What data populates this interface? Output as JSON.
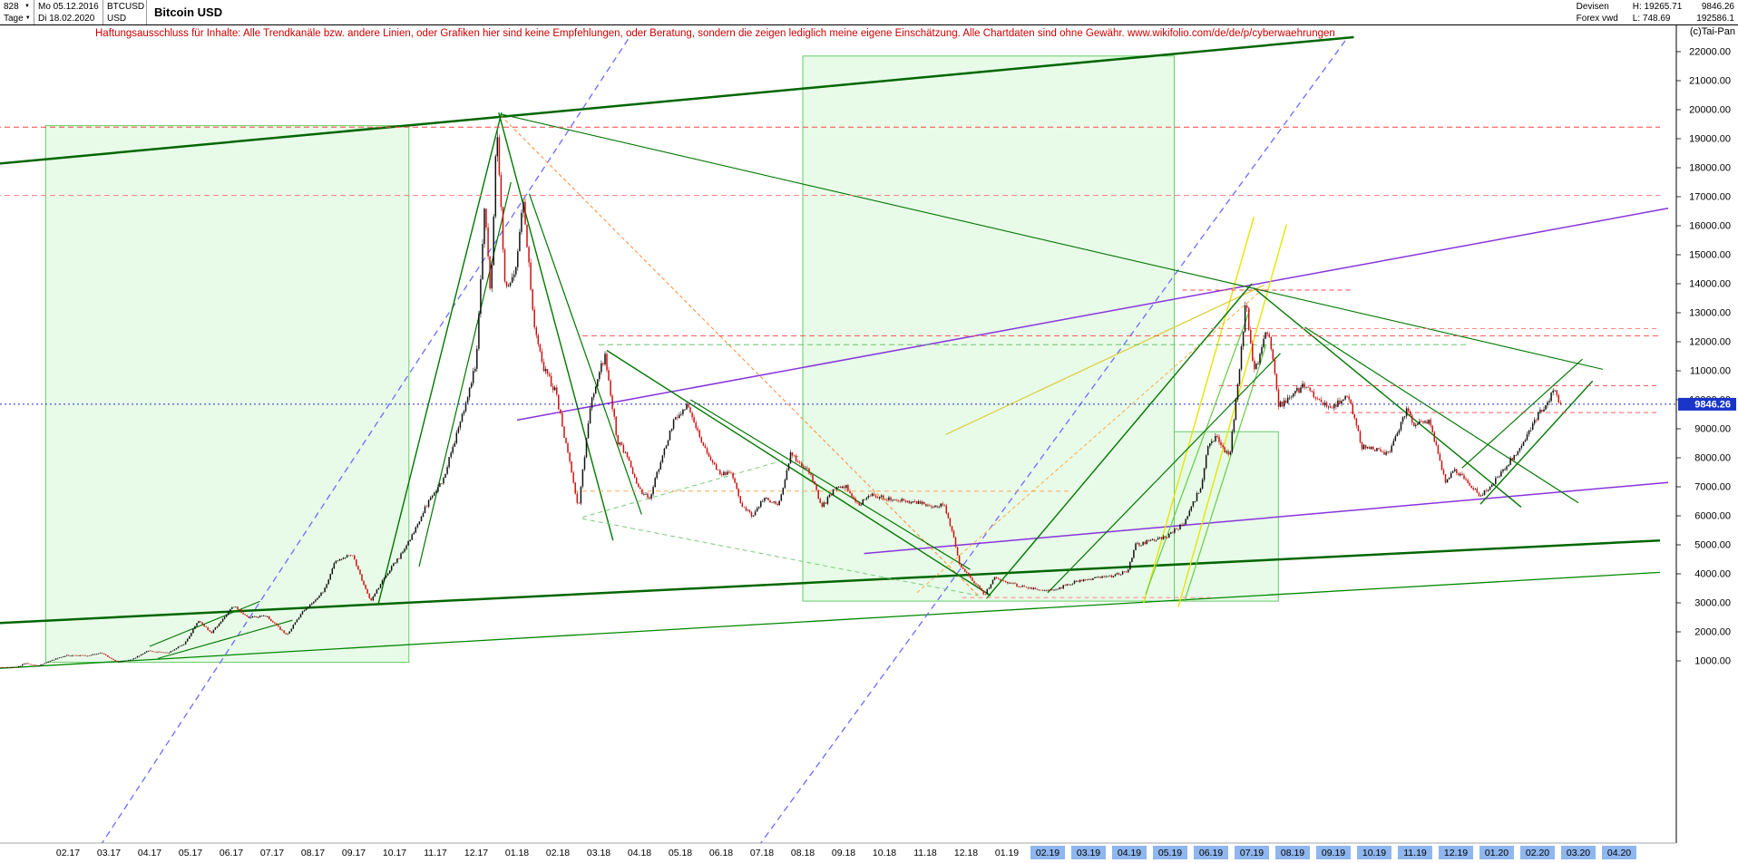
{
  "header": {
    "id_value": "828",
    "period_label": "Tage",
    "date_start": "Mo 05.12.2016",
    "date_end": "Di 18.02.2020",
    "symbol": "BTCUSD",
    "currency": "USD",
    "title": "Bitcoin USD",
    "category": "Devisen",
    "source": "Forex vwd",
    "high_label": "H: 19265.71",
    "low_label": "L: 748.69",
    "last_price": "9846.26",
    "secondary_value": "192586.1"
  },
  "disclaimer": "Haftungsausschluss für Inhalte: Alle Trendkanäle bzw. andere Linien, oder Grafiken hier sind keine Empfehlungen, oder Beratung, sondern die zeigen lediglich meine eigene Einschätzung. Alle Chartdaten sind ohne Gewähr.  www.wikifolio.com/de/de/p/cyberwaehrungen",
  "copyright": "(c)Tai-Pan",
  "price_badge": "9846.26",
  "chart_data": {
    "type": "candlestick",
    "title": "Bitcoin USD",
    "instrument": "BTCUSD",
    "timeframe": "Tage",
    "period": "Mo 05.12.2016 - Di 18.02.2020",
    "high": 19265.71,
    "low": 748.69,
    "current_price": 9846.26,
    "up_color": "#111111",
    "down_color": "#cc1111",
    "current_price_color": "#2233cc",
    "badge_color": "#1a35c8",
    "y_axis": {
      "min": 1000,
      "max": 22000,
      "step": 1000,
      "decimals": 2
    },
    "x_axis": {
      "labels": [
        "02.17",
        "03.17",
        "04.17",
        "05.17",
        "06.17",
        "07.17",
        "08.17",
        "09.17",
        "10.17",
        "11.17",
        "12.17",
        "01.18",
        "02.18",
        "03.18",
        "04.18",
        "05.18",
        "06.18",
        "07.18",
        "08.18",
        "09.18",
        "10.18",
        "11.18",
        "12.18",
        "01.19",
        "02.19",
        "03.19",
        "04.19",
        "05.19",
        "06.19",
        "07.19",
        "08.19",
        "09.19",
        "10.19",
        "11.19",
        "12.19",
        "01.20",
        "02.20",
        "03.20",
        "04.20"
      ],
      "first_label_month_index": 2,
      "highlight_start_index": 24,
      "highlight_color": "#8fb6ee"
    },
    "candle_start": 0.2,
    "candle_end": 38.6,
    "path_anchors": [
      [
        0.2,
        770
      ],
      [
        0.8,
        785
      ],
      [
        1.0,
        920
      ],
      [
        1.3,
        830
      ],
      [
        1.7,
        1050
      ],
      [
        2.0,
        1190
      ],
      [
        2.55,
        1180
      ],
      [
        2.85,
        1280
      ],
      [
        3.25,
        960
      ],
      [
        3.6,
        1040
      ],
      [
        4.0,
        1350
      ],
      [
        4.5,
        1280
      ],
      [
        4.9,
        1600
      ],
      [
        5.25,
        2400
      ],
      [
        5.55,
        1950
      ],
      [
        6.1,
        2900
      ],
      [
        6.45,
        2500
      ],
      [
        6.9,
        2550
      ],
      [
        7.4,
        1890
      ],
      [
        7.8,
        2700
      ],
      [
        8.3,
        3400
      ],
      [
        8.6,
        4450
      ],
      [
        9.0,
        4700
      ],
      [
        9.45,
        3050
      ],
      [
        9.8,
        3900
      ],
      [
        10.3,
        4850
      ],
      [
        10.8,
        6300
      ],
      [
        11.25,
        7300
      ],
      [
        11.8,
        9950
      ],
      [
        12.05,
        11300
      ],
      [
        12.25,
        16850
      ],
      [
        12.4,
        13400
      ],
      [
        12.55,
        19650
      ],
      [
        12.75,
        13900
      ],
      [
        13.0,
        14400
      ],
      [
        13.2,
        16950
      ],
      [
        13.45,
        12800
      ],
      [
        13.7,
        11100
      ],
      [
        14.0,
        10250
      ],
      [
        14.25,
        8400
      ],
      [
        14.55,
        6250
      ],
      [
        14.85,
        9900
      ],
      [
        15.05,
        10900
      ],
      [
        15.2,
        11500
      ],
      [
        15.5,
        8600
      ],
      [
        15.8,
        7900
      ],
      [
        16.0,
        6930
      ],
      [
        16.3,
        6650
      ],
      [
        16.6,
        8050
      ],
      [
        16.9,
        9300
      ],
      [
        17.2,
        9800
      ],
      [
        17.6,
        8450
      ],
      [
        18.0,
        7490
      ],
      [
        18.3,
        7450
      ],
      [
        18.55,
        6350
      ],
      [
        18.8,
        5980
      ],
      [
        19.1,
        6650
      ],
      [
        19.45,
        6350
      ],
      [
        19.75,
        8150
      ],
      [
        20.0,
        7730
      ],
      [
        20.25,
        7450
      ],
      [
        20.5,
        6250
      ],
      [
        20.8,
        6900
      ],
      [
        21.1,
        7050
      ],
      [
        21.4,
        6350
      ],
      [
        21.7,
        6700
      ],
      [
        22.0,
        6625
      ],
      [
        22.4,
        6580
      ],
      [
        22.8,
        6450
      ],
      [
        23.2,
        6350
      ],
      [
        23.5,
        6400
      ],
      [
        23.7,
        5500
      ],
      [
        23.9,
        4250
      ],
      [
        24.1,
        3950
      ],
      [
        24.5,
        3280
      ],
      [
        24.75,
        3900
      ],
      [
        25.0,
        3740
      ],
      [
        25.4,
        3550
      ],
      [
        25.8,
        3450
      ],
      [
        26.2,
        3420
      ],
      [
        26.6,
        3680
      ],
      [
        27.0,
        3820
      ],
      [
        27.5,
        3880
      ],
      [
        28.0,
        4100
      ],
      [
        28.2,
        5000
      ],
      [
        28.6,
        5150
      ],
      [
        29.0,
        5320
      ],
      [
        29.4,
        5750
      ],
      [
        29.8,
        7050
      ],
      [
        30.0,
        8560
      ],
      [
        30.2,
        8700
      ],
      [
        30.5,
        7980
      ],
      [
        30.75,
        11200
      ],
      [
        30.9,
        13400
      ],
      [
        31.1,
        10900
      ],
      [
        31.45,
        12500
      ],
      [
        31.7,
        9800
      ],
      [
        32.0,
        10080
      ],
      [
        32.3,
        10500
      ],
      [
        32.6,
        10150
      ],
      [
        33.0,
        9630
      ],
      [
        33.4,
        10250
      ],
      [
        33.75,
        8350
      ],
      [
        34.0,
        8310
      ],
      [
        34.4,
        8150
      ],
      [
        34.85,
        9650
      ],
      [
        35.0,
        9150
      ],
      [
        35.4,
        9250
      ],
      [
        35.8,
        7100
      ],
      [
        36.0,
        7570
      ],
      [
        36.3,
        7250
      ],
      [
        36.65,
        6650
      ],
      [
        37.0,
        7190
      ],
      [
        37.3,
        7750
      ],
      [
        37.6,
        8350
      ],
      [
        38.0,
        9350
      ],
      [
        38.25,
        9800
      ],
      [
        38.45,
        10300
      ],
      [
        38.6,
        9846
      ]
    ],
    "levels": [
      {
        "p": 19400,
        "m1": 0,
        "m2": 41,
        "color": "#ff4444",
        "dash": "6 4",
        "w": 1
      },
      {
        "p": 17050,
        "m1": 0,
        "m2": 41,
        "color": "#ff7777",
        "dash": "6 4",
        "w": 0.9
      },
      {
        "p": 12200,
        "m1": 14.6,
        "m2": 41,
        "color": "#ff4444",
        "dash": "6 4",
        "w": 0.9
      },
      {
        "p": 11900,
        "m1": 15.0,
        "m2": 36.3,
        "color": "#55bb55",
        "dash": "6 4",
        "w": 0.9
      },
      {
        "p": 13780,
        "m1": 29.3,
        "m2": 33.5,
        "color": "#ff4444",
        "dash": "5 4",
        "w": 0.9
      },
      {
        "p": 12450,
        "m1": 29.8,
        "m2": 41,
        "color": "#ff7777",
        "dash": "5 4",
        "w": 0.9
      },
      {
        "p": 10480,
        "m1": 30.2,
        "m2": 41,
        "color": "#ff4444",
        "dash": "5 4",
        "w": 0.9
      },
      {
        "p": 9560,
        "m1": 32.8,
        "m2": 41,
        "color": "#ff4444",
        "dash": "5 4",
        "w": 0.9
      },
      {
        "p": 6850,
        "m1": 14.4,
        "m2": 26.6,
        "color": "#ff9944",
        "dash": "5 4",
        "w": 0.9
      },
      {
        "p": 3180,
        "m1": 23.9,
        "m2": 30.0,
        "color": "#ff7777",
        "dash": "5 4",
        "w": 0.9
      }
    ],
    "trend_lines": [
      {
        "m1": 0,
        "p1": 18100,
        "m2": 33.5,
        "p2": 22500,
        "color": "#006600",
        "w": 2.5
      },
      {
        "m1": 0,
        "p1": 2280,
        "m2": 41,
        "p2": 5150,
        "color": "#006600",
        "w": 2.5
      },
      {
        "m1": 0.3,
        "p1": 740,
        "m2": 41,
        "p2": 4050,
        "color": "#008800",
        "w": 1.3
      },
      {
        "m1": 2.5,
        "p1": -6000,
        "m2": 15.8,
        "p2": 22600,
        "color": "#6b6bff",
        "w": 1.3,
        "dash": "7 5"
      },
      {
        "m1": 18.6,
        "p1": -6000,
        "m2": 33.3,
        "p2": 22400,
        "color": "#6b6bff",
        "w": 1.3,
        "dash": "7 5"
      },
      {
        "m1": 13,
        "p1": 9300,
        "m2": 41.2,
        "p2": 16600,
        "color": "#8833dd",
        "w": 1.5
      },
      {
        "m1": 21.5,
        "p1": 4700,
        "m2": 41.2,
        "p2": 7150,
        "color": "#8833dd",
        "w": 1.5
      },
      {
        "m1": 28.35,
        "p1": 3000,
        "m2": 31.05,
        "p2": 16300,
        "color": "#e6e600",
        "w": 1.4
      },
      {
        "m1": 29.2,
        "p1": 2850,
        "m2": 31.85,
        "p2": 16050,
        "color": "#e6e600",
        "w": 1.4
      },
      {
        "m1": 23.5,
        "p1": 8800,
        "m2": 31.3,
        "p2": 13950,
        "color": "#ddcc33",
        "w": 1.2
      },
      {
        "m1": 12.6,
        "p1": 19800,
        "m2": 24.3,
        "p2": 3250,
        "color": "#ff8833",
        "w": 1,
        "dash": "4 3"
      },
      {
        "m1": 22.8,
        "p1": 3350,
        "m2": 31.3,
        "p2": 13850,
        "color": "#ffaa44",
        "w": 1,
        "dash": "4 3"
      },
      {
        "m1": 28.4,
        "p1": 3300,
        "m2": 30.95,
        "p2": 13100,
        "color": "#66cc44",
        "w": 1.2
      },
      {
        "m1": 29.35,
        "p1": 3050,
        "m2": 31.35,
        "p2": 11900,
        "color": "#66cc44",
        "w": 1.2
      },
      {
        "m1": 12.55,
        "p1": 19900,
        "m2": 15.35,
        "p2": 5150,
        "color": "#007700",
        "w": 1.4
      },
      {
        "m1": 13.3,
        "p1": 17100,
        "m2": 16.05,
        "p2": 6050,
        "color": "#007700",
        "w": 1.2
      },
      {
        "m1": 9.6,
        "p1": 2950,
        "m2": 12.62,
        "p2": 19900,
        "color": "#007700",
        "w": 1.4
      },
      {
        "m1": 10.6,
        "p1": 4250,
        "m2": 12.85,
        "p2": 17500,
        "color": "#007700",
        "w": 1.2
      },
      {
        "m1": 15.2,
        "p1": 11700,
        "m2": 24.6,
        "p2": 3250,
        "color": "#007700",
        "w": 1.4
      },
      {
        "m1": 17.25,
        "p1": 10000,
        "m2": 24.1,
        "p2": 4150,
        "color": "#007700",
        "w": 1.2
      },
      {
        "m1": 24.5,
        "p1": 3150,
        "m2": 31.0,
        "p2": 14000,
        "color": "#007700",
        "w": 1.4
      },
      {
        "m1": 26.0,
        "p1": 3350,
        "m2": 31.7,
        "p2": 11600,
        "color": "#007700",
        "w": 1.2
      },
      {
        "m1": 31.05,
        "p1": 13850,
        "m2": 37.6,
        "p2": 6300,
        "color": "#007700",
        "w": 1.4
      },
      {
        "m1": 32.3,
        "p1": 12500,
        "m2": 39.0,
        "p2": 6450,
        "color": "#007700",
        "w": 1.2
      },
      {
        "m1": 36.6,
        "p1": 6400,
        "m2": 39.35,
        "p2": 10650,
        "color": "#007700",
        "w": 1.4
      },
      {
        "m1": 36.15,
        "p1": 7650,
        "m2": 39.1,
        "p2": 11400,
        "color": "#007700",
        "w": 1.2
      },
      {
        "m1": 4.2,
        "p1": 1080,
        "m2": 7.5,
        "p2": 2400,
        "color": "#007700",
        "w": 1.1
      },
      {
        "m1": 4.0,
        "p1": 1500,
        "m2": 6.7,
        "p2": 3050,
        "color": "#007700",
        "w": 1.1
      },
      {
        "m1": 12.6,
        "p1": 19850,
        "m2": 39.6,
        "p2": 11050,
        "color": "#007700",
        "w": 1.1
      },
      {
        "m1": 14.6,
        "p1": 5900,
        "m2": 24.3,
        "p2": 3250,
        "color": "#77cc77",
        "w": 1,
        "dash": "5 4"
      },
      {
        "m1": 14.6,
        "p1": 5950,
        "m2": 20.0,
        "p2": 8100,
        "color": "#77cc77",
        "w": 1,
        "dash": "5 4"
      }
    ],
    "boxes": [
      {
        "m1": 1.45,
        "p1": 950,
        "m2": 10.35,
        "p2": 19450
      },
      {
        "m1": 20.0,
        "p1": 3060,
        "m2": 29.1,
        "p2": 21850
      },
      {
        "m1": 29.1,
        "p1": 3060,
        "m2": 31.65,
        "p2": 8900
      }
    ],
    "box_fill": "rgba(140,235,140,0.20)",
    "box_stroke": "#66cc66"
  }
}
